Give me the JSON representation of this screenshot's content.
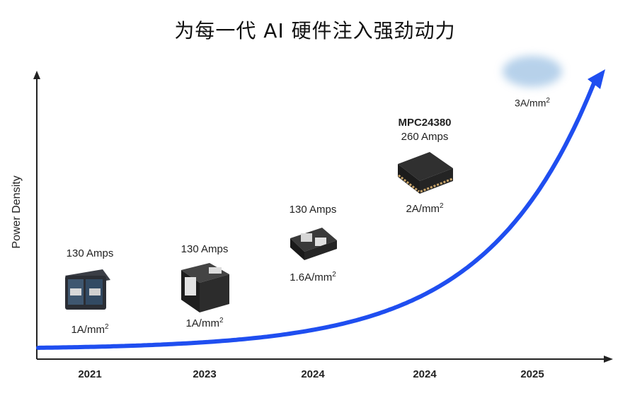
{
  "chart_data": {
    "type": "line",
    "title": "为每一代 AI 硬件注入强劲动力",
    "ylabel": "Power Density",
    "xlabel": "",
    "categories": [
      "2021",
      "2023",
      "2024",
      "2024",
      "2025"
    ],
    "series": [
      {
        "values": [
          1,
          1,
          1.6,
          2,
          3
        ]
      }
    ],
    "annotations": [
      {
        "category": "2021",
        "current": "130 Amps",
        "density": "1A/mm",
        "density_sup": "2"
      },
      {
        "category": "2023",
        "current": "130 Amps",
        "density": "1A/mm",
        "density_sup": "2"
      },
      {
        "category": "2024",
        "current": "130 Amps",
        "density": "1.6A/mm",
        "density_sup": "2"
      },
      {
        "category": "2024",
        "part": "MPC24380",
        "current": "260 Amps",
        "density": "2A/mm",
        "density_sup": "2"
      },
      {
        "category": "2025",
        "density": "3A/mm",
        "density_sup": "2"
      }
    ],
    "colors": {
      "curve": "#1f4ef0",
      "axis": "#222222"
    }
  }
}
